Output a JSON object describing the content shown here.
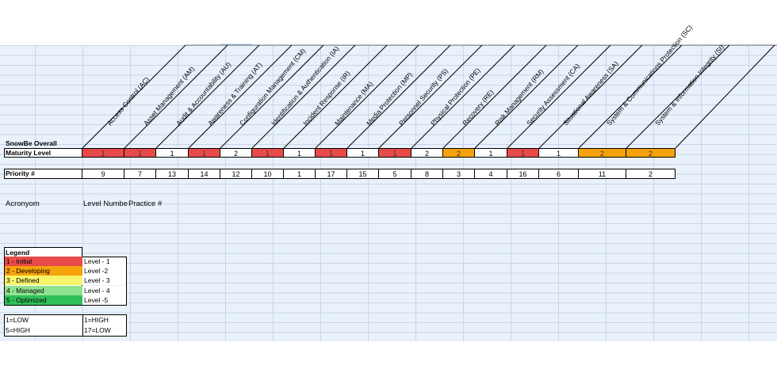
{
  "title": "SnowBe Overall",
  "row_labels": {
    "maturity": "Maturity Level",
    "priority": "Priority #"
  },
  "domains": [
    {
      "name": "Access Control (AC)",
      "maturity": "1",
      "priority": "9",
      "color": "#e84a4a"
    },
    {
      "name": "Asset Management (AM)",
      "maturity": "1",
      "priority": "7",
      "color": "#e84a4a"
    },
    {
      "name": "Audit & Accountability (AU)",
      "maturity": "1",
      "priority": "13",
      "color": "#ffffff"
    },
    {
      "name": "Awareness & Training (AT)",
      "maturity": "1",
      "priority": "14",
      "color": "#e84a4a"
    },
    {
      "name": "Configuration Management (CM)",
      "maturity": "2",
      "priority": "12",
      "color": "#ffffff"
    },
    {
      "name": "Identification & Authentication (IA)",
      "maturity": "1",
      "priority": "10",
      "color": "#e84a4a"
    },
    {
      "name": "Incident Response (IR)",
      "maturity": "1",
      "priority": "1",
      "color": "#ffffff"
    },
    {
      "name": "Maintenance (MA)",
      "maturity": "1",
      "priority": "17",
      "color": "#e84a4a"
    },
    {
      "name": "Media Protection (MP)",
      "maturity": "1",
      "priority": "15",
      "color": "#ffffff"
    },
    {
      "name": "Personnel Security (PS)",
      "maturity": "1",
      "priority": "5",
      "color": "#e84a4a"
    },
    {
      "name": "Physical Protection (PE)",
      "maturity": "2",
      "priority": "8",
      "color": "#ffffff"
    },
    {
      "name": "Recovery (RE)",
      "maturity": "2",
      "priority": "3",
      "color": "#f5a20c"
    },
    {
      "name": "Risk Management (RM)",
      "maturity": "1",
      "priority": "4",
      "color": "#ffffff"
    },
    {
      "name": "Security Assessment (CA)",
      "maturity": "1",
      "priority": "16",
      "color": "#e84a4a"
    },
    {
      "name": "Situational Awareness (SA)",
      "maturity": "1",
      "priority": "6",
      "color": "#ffffff"
    },
    {
      "name": "System & Communications Protection (SC)",
      "maturity": "2",
      "priority": "11",
      "color": "#f5a20c"
    },
    {
      "name": "System & Information Integrity (SI)",
      "maturity": "2",
      "priority": "2",
      "color": "#f5a20c"
    }
  ],
  "columns": {
    "acronym": "Acronyom",
    "level_number": "Level Numbe",
    "practice": "Practice #"
  },
  "legend": {
    "title": "Legend",
    "items": [
      {
        "label": "1 - Initial",
        "level": "Level - 1",
        "color": "#e84a4a"
      },
      {
        "label": "2 - Developing",
        "level": "Level -2",
        "color": "#f5a20c"
      },
      {
        "label": "3 - Defined",
        "level": "Level - 3",
        "color": "#f7f56b"
      },
      {
        "label": "4 - Managed",
        "level": "Level - 4",
        "color": "#8fe38f"
      },
      {
        "label": "5 - Optimized",
        "level": "Level -5",
        "color": "#2fbf5a"
      }
    ]
  },
  "scale": {
    "left": [
      "1=LOW",
      "5=HIGH"
    ],
    "right": [
      "1=HIGH",
      "17=LOW"
    ]
  }
}
